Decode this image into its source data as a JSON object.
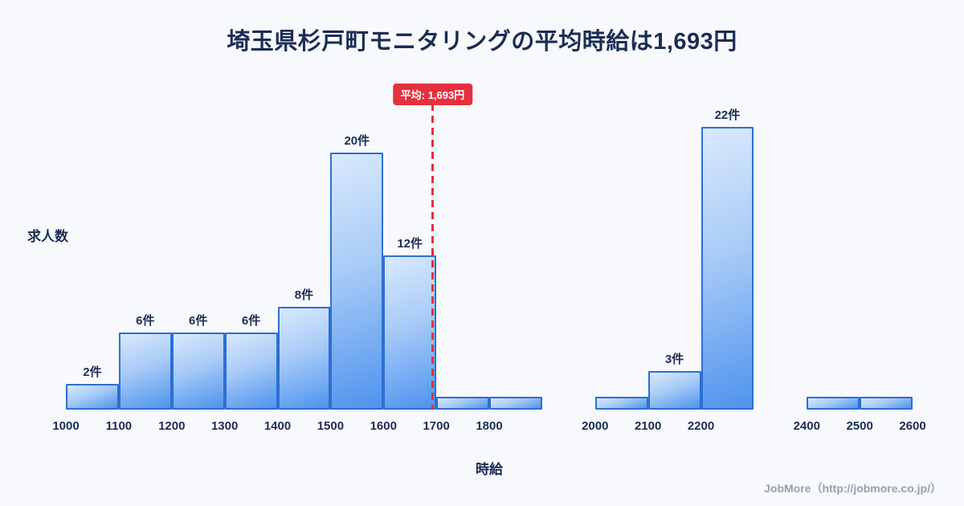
{
  "title": "埼玉県杉戸町モニタリングの平均時給は1,693円",
  "footer": "JobMore（http://jobmore.co.jp/）",
  "colors": {
    "background": "#f7f9fd",
    "title_text": "#1c2d55",
    "bar_fill_light": "#d9e9fc",
    "bar_fill_dark": "#4f93ee",
    "bar_border": "#2d6fd2",
    "average_red": "#e5303e",
    "footer_text": "#98a0b0"
  },
  "chart_data": {
    "type": "bar",
    "title": "埼玉県杉戸町モニタリングの平均時給は1,693円",
    "xlabel": "時給",
    "ylabel": "求人数",
    "x_start": 1000,
    "x_end": 2600,
    "bin_width": 100,
    "ylim": [
      0,
      24
    ],
    "grid": false,
    "legend": false,
    "x_ticks": [
      1000,
      1100,
      1200,
      1300,
      1400,
      1500,
      1600,
      1700,
      1800,
      2000,
      2100,
      2200,
      2400,
      2500,
      2600
    ],
    "bars": [
      {
        "start": 1000,
        "end": 1100,
        "count": 2,
        "label": "2件"
      },
      {
        "start": 1100,
        "end": 1200,
        "count": 6,
        "label": "6件"
      },
      {
        "start": 1200,
        "end": 1300,
        "count": 6,
        "label": "6件"
      },
      {
        "start": 1300,
        "end": 1400,
        "count": 6,
        "label": "6件"
      },
      {
        "start": 1400,
        "end": 1500,
        "count": 8,
        "label": "8件"
      },
      {
        "start": 1500,
        "end": 1600,
        "count": 20,
        "label": "20件"
      },
      {
        "start": 1600,
        "end": 1700,
        "count": 12,
        "label": "12件"
      },
      {
        "start": 1700,
        "end": 1800,
        "count": 1,
        "label": ""
      },
      {
        "start": 1800,
        "end": 1900,
        "count": 1,
        "label": ""
      },
      {
        "start": 2000,
        "end": 2100,
        "count": 1,
        "label": ""
      },
      {
        "start": 2100,
        "end": 2200,
        "count": 3,
        "label": "3件"
      },
      {
        "start": 2200,
        "end": 2300,
        "count": 22,
        "label": "22件"
      },
      {
        "start": 2400,
        "end": 2500,
        "count": 1,
        "label": ""
      },
      {
        "start": 2500,
        "end": 2600,
        "count": 1,
        "label": ""
      }
    ],
    "average_line": {
      "value": 1693,
      "label": "平均: 1,693円"
    }
  }
}
